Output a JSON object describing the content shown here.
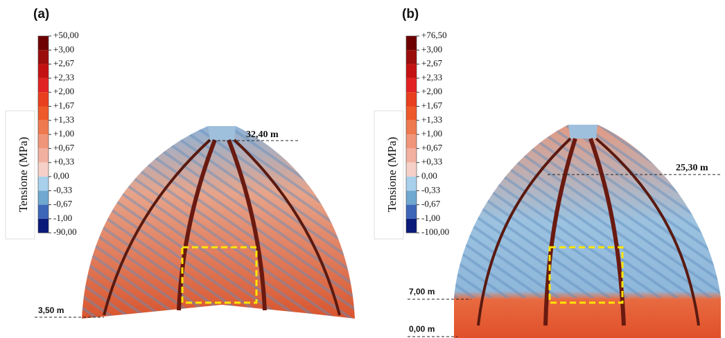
{
  "panels": [
    {
      "label": "(a)",
      "legend_title": "Tensione (MPa)",
      "legend_labels": [
        "+50,00",
        "+3,00",
        "+2,67",
        "+2,33",
        "+2,00",
        "+1,67",
        "+1,33",
        "+1,00",
        "+0,67",
        "+0,33",
        "0,00",
        "-0,33",
        "-0,67",
        "-1,00",
        "-90,00"
      ],
      "levels": [
        "32,40 m",
        "3,50 m"
      ]
    },
    {
      "label": "(b)",
      "legend_title": "Tensione (MPa)",
      "legend_labels": [
        "+76,50",
        "+3,00",
        "+2,67",
        "+2,33",
        "+2,00",
        "+1,67",
        "+1,33",
        "+1,00",
        "+0,67",
        "+0,33",
        "0,00",
        "-0,33",
        "-0,67",
        "-1,00",
        "-100,00"
      ],
      "levels": [
        "25,30 m",
        "7,00 m",
        "0,00 m"
      ]
    }
  ],
  "legend_colors": [
    "#6e0000",
    "#9b0d0d",
    "#c41212",
    "#e22222",
    "#e8401e",
    "#ee5a2a",
    "#ef7a50",
    "#f0957a",
    "#f2b0a0",
    "#f6d0c8",
    "#a8d0ec",
    "#6fa8d0",
    "#3d66b8",
    "#0a1a78"
  ]
}
